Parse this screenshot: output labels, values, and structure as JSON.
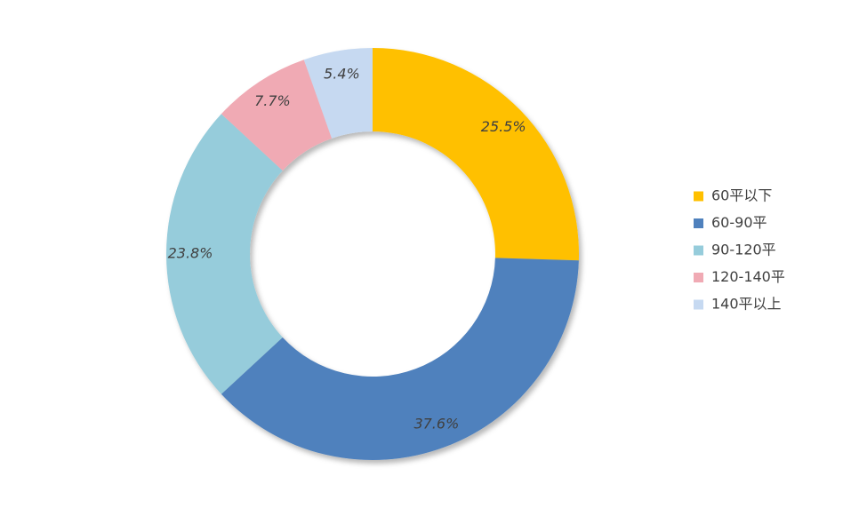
{
  "chart_data": {
    "type": "pie",
    "variant": "donut",
    "title": "",
    "legend_position": "right",
    "slices": [
      {
        "name": "60平以下",
        "value": 25.5,
        "label": "25.5%",
        "color": "#FFC000"
      },
      {
        "name": "60-90平",
        "value": 37.6,
        "label": "37.6%",
        "color": "#4F81BD"
      },
      {
        "name": "90-120平",
        "value": 23.8,
        "label": "23.8%",
        "color": "#96CCDB"
      },
      {
        "name": "120-140平",
        "value": 7.7,
        "label": "7.7%",
        "color": "#F0AAB4"
      },
      {
        "name": "140平以上",
        "value": 5.4,
        "label": "5.4%",
        "color": "#C6D9F1"
      }
    ]
  }
}
